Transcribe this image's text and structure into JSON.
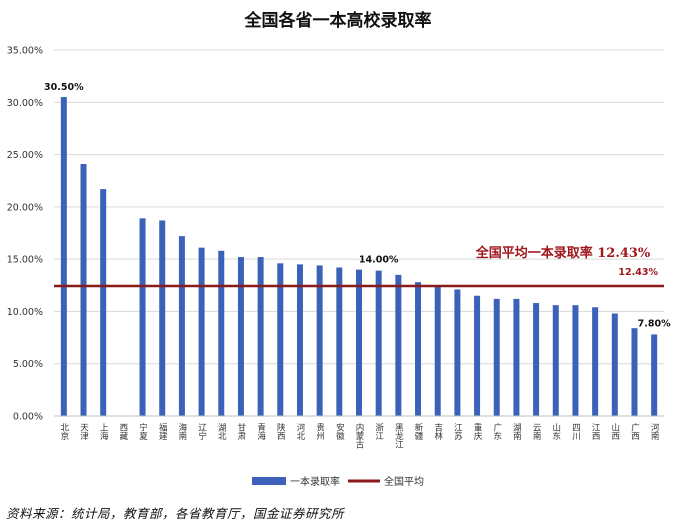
{
  "chart_data": {
    "type": "bar",
    "title": "全国各省一本高校录取率",
    "categories": [
      "北京",
      "天津",
      "上海",
      "西藏",
      "宁夏",
      "福建",
      "海南",
      "辽宁",
      "湖北",
      "甘肃",
      "青海",
      "陕西",
      "河北",
      "贵州",
      "安徽",
      "内蒙古",
      "浙江",
      "黑龙江",
      "新疆",
      "吉林",
      "江苏",
      "重庆",
      "广东",
      "湖南",
      "云南",
      "山东",
      "四川",
      "江西",
      "山西",
      "广西",
      "河南"
    ],
    "series": [
      {
        "name": "一本录取率",
        "type": "bar",
        "color": "#3b61b8",
        "values": [
          30.5,
          24.1,
          21.7,
          null,
          18.9,
          18.7,
          17.2,
          16.1,
          15.8,
          15.2,
          15.2,
          14.6,
          14.5,
          14.4,
          14.2,
          14.0,
          13.9,
          13.5,
          12.8,
          12.4,
          12.1,
          11.5,
          11.2,
          11.2,
          10.8,
          10.6,
          10.6,
          10.4,
          9.8,
          8.4,
          7.8
        ]
      },
      {
        "name": "全国平均",
        "type": "line",
        "color": "#8b1a1a",
        "value": 12.43
      }
    ],
    "ylim": [
      0,
      35
    ],
    "yticks": [
      "0.00%",
      "5.00%",
      "10.00%",
      "15.00%",
      "20.00%",
      "25.00%",
      "30.00%",
      "35.00%"
    ],
    "grid": true,
    "legend_position": "bottom",
    "annotations": {
      "max_label": "30.50%",
      "mid_label": "14.00%",
      "min_label": "7.80%",
      "avg_label": "12.43%",
      "avg_title": "全国平均一本录取率 12.43%"
    }
  },
  "source_text": "资料来源：统计局，教育部，各省教育厅，国金证券研究所"
}
